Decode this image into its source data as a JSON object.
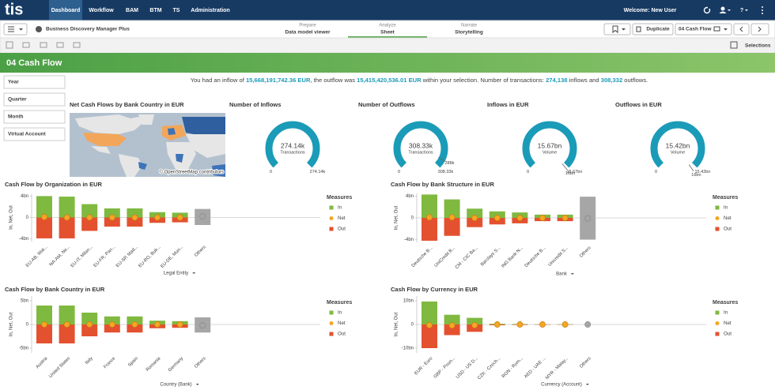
{
  "header": {
    "logo": "tis",
    "nav": [
      "Dashboard",
      "Workflow",
      "BAM",
      "BTM",
      "TS",
      "Administration"
    ],
    "welcome": "Welcome: New User",
    "help": "?"
  },
  "app_bar": {
    "app_name": "Business Discovery Manager Plus",
    "tabs": [
      {
        "over": "Prepare",
        "label": "Data model viewer"
      },
      {
        "over": "Analyze",
        "label": "Sheet"
      },
      {
        "over": "Narrate",
        "label": "Storytelling"
      }
    ],
    "duplicate": "Duplicate",
    "sheet": "04 Cash Flow"
  },
  "toolbar": {
    "selections": "Selections"
  },
  "sheet": {
    "title": "04 Cash Flow",
    "filters": [
      "Year",
      "Quarter",
      "Month",
      "Virtual Account"
    ],
    "summary": [
      {
        "text": "You had an inflow of "
      },
      {
        "text": "15,668,191,742.36 EUR",
        "highlight": true
      },
      {
        "text": ", the outflow was "
      },
      {
        "text": "15,415,420,536.01 EUR",
        "highlight": true
      },
      {
        "text": " within your selection. Number of transactions: "
      },
      {
        "text": "274,138",
        "highlight": true
      },
      {
        "text": " inflows and "
      },
      {
        "text": "308,332",
        "highlight": true
      },
      {
        "text": " outflows."
      }
    ]
  },
  "map": {
    "title": "Net Cash Flows by Bank Country in EUR",
    "credit": "© OpenStreetMap contributors"
  },
  "chart_data": [
    {
      "type": "gauge",
      "title": "Number of Inflows",
      "value": 274140,
      "value_label": "274.14k",
      "subtitle": "Transactions",
      "min": 0,
      "max": {
        "value": 274140,
        "label": "274.14k"
      },
      "color": "#1a9bb8"
    },
    {
      "type": "gauge",
      "title": "Number of Outflows",
      "value": 308330,
      "value_label": "308.33k",
      "subtitle": "Transactions",
      "min": 0,
      "max": {
        "value": 308330,
        "label": "308.33k"
      },
      "marker": {
        "value": 288000,
        "label": "288k"
      },
      "color": "#1a9bb8"
    },
    {
      "type": "gauge",
      "title": "Inflows in EUR",
      "value": 15670000000,
      "value_label": "15.67bn",
      "subtitle": "Volume",
      "min": 0,
      "max": {
        "value": 15670000000,
        "label": "15.67bn"
      },
      "marker": {
        "value": 16000000000,
        "label": "16bn"
      },
      "color": "#1a9bb8"
    },
    {
      "type": "gauge",
      "title": "Outflows in EUR",
      "value": 15420000000,
      "value_label": "15.42bn",
      "subtitle": "Volume",
      "min": 0,
      "max": {
        "value": 15420000000,
        "label": "15.42bn"
      },
      "marker": {
        "value": 16000000000,
        "label": "16bn"
      },
      "color": "#1a9bb8"
    },
    {
      "type": "combo",
      "title": "Cash Flow by Organization in EUR",
      "y_label": "In, Net, Out",
      "x_label": "Legal Entity",
      "legend_title": "Measures",
      "categories": [
        "EU-AB, Wat...",
        "NA-AM, Ne...",
        "EU-IT, Milan...",
        "EU-FR, Pari...",
        "EU-SP, Mad...",
        "EU-RO, Buk...",
        "EU-DE, Mun...",
        "Others"
      ],
      "series": [
        {
          "name": "In",
          "type": "bar",
          "color": "#7fb940",
          "values": [
            4.0,
            3.9,
            2.5,
            1.7,
            1.7,
            1.0,
            0.9,
            1.6
          ]
        },
        {
          "name": "Net",
          "type": "point",
          "color": "#f5a623",
          "values": [
            0.1,
            0.0,
            0.0,
            0.0,
            0.0,
            0.0,
            0.0,
            0.2
          ]
        },
        {
          "name": "Out",
          "type": "bar",
          "color": "#e4512f",
          "values": [
            -3.9,
            -3.9,
            -2.5,
            -1.7,
            -1.7,
            -1.0,
            -0.9,
            -1.4
          ]
        }
      ],
      "others_color": "#a6a6a6",
      "ylim": [
        -4.5,
        4.5
      ],
      "yticks": [
        {
          "value": 4,
          "label": "4bn"
        },
        0,
        {
          "value": -4,
          "label": "-4bn"
        }
      ]
    },
    {
      "type": "combo",
      "title": "Cash Flow by Bank Structure in EUR",
      "y_label": "In, Net, Out",
      "x_label": "Bank",
      "legend_title": "Measures",
      "categories": [
        "Deutsche B...",
        "UniCredit B...",
        "CM - CIC Ba...",
        "Barclays S...",
        "ING Bank N...",
        "Deutsche B...",
        "Unicredit S...",
        "Others"
      ],
      "series": [
        {
          "name": "In",
          "type": "bar",
          "color": "#7fb940",
          "values": [
            4.3,
            3.4,
            1.7,
            1.2,
            1.0,
            0.6,
            0.6,
            3.9
          ]
        },
        {
          "name": "Net",
          "type": "point",
          "color": "#f5a623",
          "values": [
            0.1,
            0.1,
            0.0,
            0.0,
            0.0,
            0.0,
            0.0,
            -0.1
          ]
        },
        {
          "name": "Out",
          "type": "bar",
          "color": "#e4512f",
          "values": [
            -4.2,
            -3.3,
            -1.7,
            -1.2,
            -1.0,
            -0.6,
            -0.6,
            -4.0
          ]
        }
      ],
      "others_color": "#a6a6a6",
      "ylim": [
        -4.5,
        4.5
      ],
      "yticks": [
        {
          "value": 4,
          "label": "4bn"
        },
        0,
        {
          "value": -4,
          "label": "-4bn"
        }
      ]
    },
    {
      "type": "combo",
      "title": "Cash Flow by Bank Country in EUR",
      "y_label": "In, Net, Out",
      "x_label": "Country (Bank)",
      "legend_title": "Measures",
      "categories": [
        "Austria",
        "United States",
        "Italy",
        "France",
        "Spain",
        "Romania",
        "Germany",
        "Others"
      ],
      "series": [
        {
          "name": "In",
          "type": "bar",
          "color": "#7fb940",
          "values": [
            4.0,
            4.0,
            2.5,
            1.7,
            1.7,
            0.8,
            0.7,
            1.5
          ]
        },
        {
          "name": "Net",
          "type": "point",
          "color": "#f5a623",
          "values": [
            0.0,
            0.0,
            0.0,
            0.0,
            0.0,
            0.0,
            0.0,
            -0.2
          ]
        },
        {
          "name": "Out",
          "type": "bar",
          "color": "#e4512f",
          "values": [
            -4.0,
            -4.0,
            -2.5,
            -1.7,
            -1.7,
            -0.8,
            -0.7,
            -1.7
          ]
        }
      ],
      "others_color": "#a6a6a6",
      "ylim": [
        -6,
        6
      ],
      "yticks": [
        {
          "value": 5,
          "label": "5bn"
        },
        0,
        {
          "value": -5,
          "label": "-5bn"
        }
      ]
    },
    {
      "type": "combo",
      "title": "Cash Flow by Currency in EUR",
      "y_label": "In, Net, Out",
      "x_label": "Currency (Account)",
      "legend_title": "Measures",
      "categories": [
        "EUR - Euro",
        "GBP - Poun...",
        "USD - US D...",
        "CZK - Czech...",
        "RON - Rom...",
        "AED - UAE ...",
        "MYR - Malay...",
        "Others"
      ],
      "series": [
        {
          "name": "In",
          "type": "bar",
          "color": "#7fb940",
          "values": [
            9.7,
            4.1,
            2.8,
            0.3,
            0.2,
            0.1,
            0.1,
            0.0
          ]
        },
        {
          "name": "Net",
          "type": "point",
          "color": "#f5a623",
          "values": [
            -0.3,
            -0.4,
            -0.3,
            0.0,
            0.0,
            0.0,
            0.0,
            0.0
          ]
        },
        {
          "name": "Out",
          "type": "bar",
          "color": "#e4512f",
          "values": [
            -10.0,
            -4.5,
            -3.1,
            -0.3,
            -0.2,
            -0.1,
            -0.1,
            0.0
          ]
        }
      ],
      "others_color": "#a6a6a6",
      "ylim": [
        -12,
        12
      ],
      "yticks": [
        {
          "value": 10,
          "label": "10bn"
        },
        0,
        {
          "value": -10,
          "label": "-10bn"
        }
      ]
    }
  ]
}
